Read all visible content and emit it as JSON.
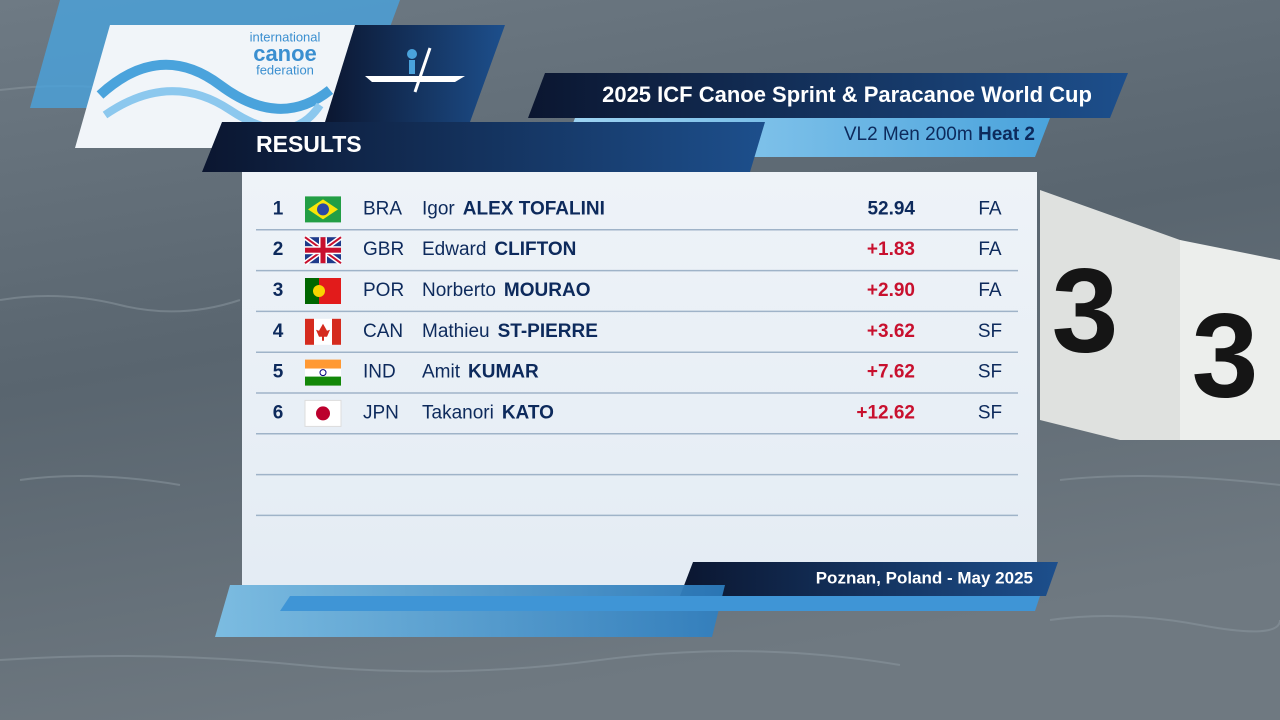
{
  "logo": {
    "line1": "international",
    "line2": "canoe",
    "line3": "federation"
  },
  "header": {
    "title": "2025 ICF Canoe Sprint & Paracanoe World Cup",
    "event": "VL2 Men 200m",
    "heat": "Heat 2",
    "section": "RESULTS"
  },
  "table": {
    "rows": [
      {
        "rank": 1,
        "country": "BRA",
        "first_name": "Igor",
        "last_name": "ALEX TOFALINI",
        "time": "52.94",
        "qualification": "FA"
      },
      {
        "rank": 2,
        "country": "GBR",
        "first_name": "Edward",
        "last_name": "CLIFTON",
        "time": "+1.83",
        "qualification": "FA"
      },
      {
        "rank": 3,
        "country": "POR",
        "first_name": "Norberto",
        "last_name": "MOURAO",
        "time": "+2.90",
        "qualification": "FA"
      },
      {
        "rank": 4,
        "country": "CAN",
        "first_name": "Mathieu",
        "last_name": "ST-PIERRE",
        "time": "+3.62",
        "qualification": "SF"
      },
      {
        "rank": 5,
        "country": "IND",
        "first_name": "Amit",
        "last_name": "KUMAR",
        "time": "+7.62",
        "qualification": "SF"
      },
      {
        "rank": 6,
        "country": "JPN",
        "first_name": "Takanori",
        "last_name": "KATO",
        "time": "+12.62",
        "qualification": "SF"
      }
    ]
  },
  "footer": {
    "location": "Poznan, Poland - May 2025"
  },
  "scene": {
    "buoy_number": "3"
  }
}
